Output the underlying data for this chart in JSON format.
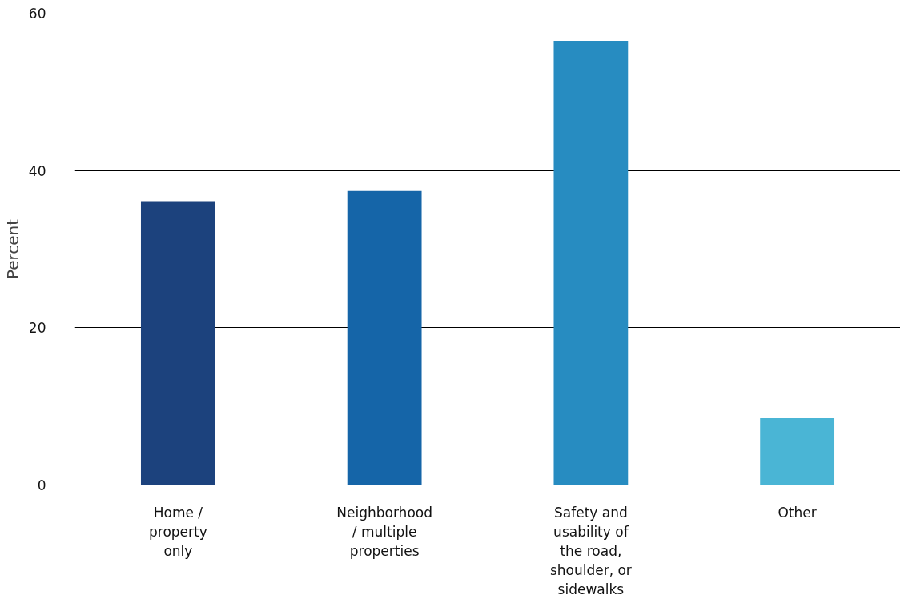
{
  "chart_data": {
    "type": "bar",
    "ylabel": "Percent",
    "categories": [
      "Home / property only",
      "Neighborhood / multiple properties",
      "Safety and usability of the road, shoulder, or sidewalks",
      "Other"
    ],
    "values": [
      36.1,
      37.4,
      56.5,
      8.5
    ],
    "colors": [
      "#1c427d",
      "#1565a8",
      "#278cc1",
      "#4ab5d5"
    ],
    "ylim": [
      0,
      60
    ],
    "yticks": [
      0,
      20,
      40,
      60
    ],
    "grid": "y"
  }
}
